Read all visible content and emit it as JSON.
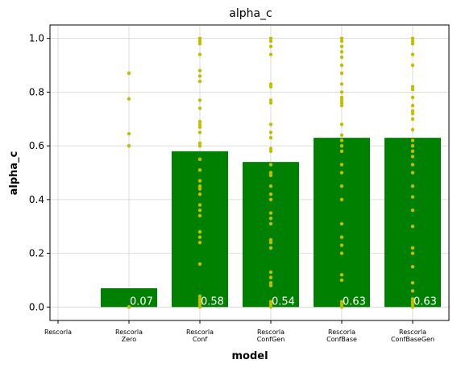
{
  "chart_data": {
    "type": "bar",
    "title": "alpha_c",
    "xlabel": "model",
    "ylabel": "alpha_c",
    "categories": [
      [
        "Rescorla"
      ],
      [
        "Rescorla",
        "Zero"
      ],
      [
        "Rescorla",
        "Conf"
      ],
      [
        "Rescorla",
        "ConfGen"
      ],
      [
        "Rescorla",
        "ConfBase"
      ],
      [
        "Rescorla",
        "ConfBaseGen"
      ]
    ],
    "values": [
      null,
      0.07,
      0.58,
      0.54,
      0.63,
      0.63
    ],
    "value_labels": [
      "",
      "0.07",
      "0.58",
      "0.54",
      "0.63",
      "0.63"
    ],
    "ylim": [
      -0.05,
      1.05
    ],
    "yticks": [
      0.0,
      0.2,
      0.4,
      0.6,
      0.8,
      1.0
    ],
    "ytick_labels": [
      "0.0",
      "0.2",
      "0.4",
      "0.6",
      "0.8",
      "1.0"
    ],
    "grid": true,
    "bar_color": "#008000",
    "point_color": "#bfbf00",
    "points": [
      [],
      [
        0.0,
        0.0,
        0.0,
        0.6,
        0.645,
        0.775,
        0.87
      ],
      [
        0.0,
        0.01,
        0.02,
        0.03,
        0.04,
        0.16,
        0.24,
        0.26,
        0.28,
        0.34,
        0.36,
        0.38,
        0.42,
        0.44,
        0.45,
        0.47,
        0.51,
        0.55,
        0.6,
        0.61,
        0.65,
        0.67,
        0.68,
        0.69,
        0.74,
        0.77,
        0.84,
        0.86,
        0.88,
        0.94,
        0.98,
        0.99,
        1.0
      ],
      [
        0.0,
        0.01,
        0.02,
        0.08,
        0.09,
        0.11,
        0.13,
        0.22,
        0.24,
        0.25,
        0.31,
        0.33,
        0.35,
        0.4,
        0.42,
        0.45,
        0.49,
        0.5,
        0.53,
        0.58,
        0.59,
        0.63,
        0.65,
        0.68,
        0.76,
        0.77,
        0.82,
        0.83,
        0.94,
        0.97,
        0.99,
        1.0
      ],
      [
        0.0,
        0.01,
        0.02,
        0.1,
        0.12,
        0.2,
        0.23,
        0.26,
        0.31,
        0.4,
        0.45,
        0.5,
        0.53,
        0.58,
        0.6,
        0.62,
        0.64,
        0.68,
        0.75,
        0.76,
        0.77,
        0.78,
        0.8,
        0.83,
        0.87,
        0.9,
        0.93,
        0.95,
        0.97,
        0.99,
        1.0
      ],
      [
        0.0,
        0.01,
        0.02,
        0.03,
        0.06,
        0.09,
        0.15,
        0.2,
        0.22,
        0.3,
        0.36,
        0.41,
        0.45,
        0.5,
        0.53,
        0.56,
        0.58,
        0.6,
        0.62,
        0.66,
        0.7,
        0.72,
        0.73,
        0.75,
        0.78,
        0.81,
        0.82,
        0.9,
        0.94,
        0.98,
        0.99,
        1.0
      ]
    ]
  }
}
